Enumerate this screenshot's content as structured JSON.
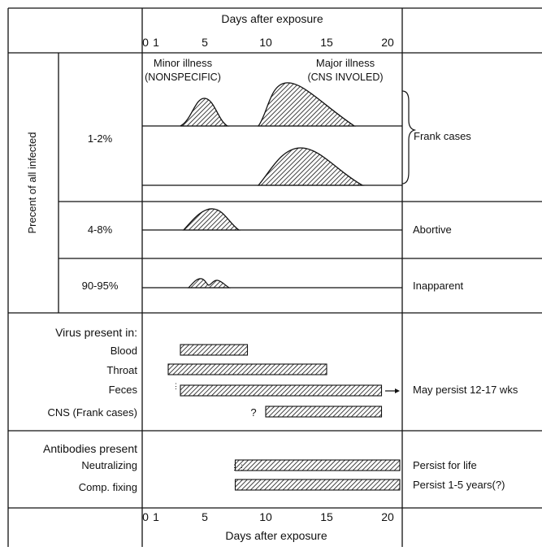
{
  "axis": {
    "title": "Days after exposure",
    "ticks": [
      "0",
      "1",
      "5",
      "10",
      "15",
      "20"
    ],
    "tick_days": [
      0,
      1,
      5,
      10,
      15,
      20
    ]
  },
  "infected": {
    "side_label": "Precent of all infected",
    "illness_labels": {
      "minor_line1": "Minor illness",
      "minor_line2": "(NONSPECIFIC)",
      "major_line1": "Major illness",
      "major_line2": "(CNS INVOLED)"
    },
    "rows": [
      {
        "percent": "1-2%",
        "outcome": "Frank cases"
      },
      {
        "percent": "4-8%",
        "outcome": "Abortive"
      },
      {
        "percent": "90-95%",
        "outcome": "Inapparent"
      }
    ]
  },
  "virus": {
    "heading": "Virus present in:",
    "items": [
      {
        "label": "Blood",
        "start_day": 3,
        "end_day": 8.5,
        "note": ""
      },
      {
        "label": "Throat",
        "start_day": 2,
        "end_day": 15,
        "note": ""
      },
      {
        "label": "Feces",
        "start_day": 3,
        "end_day": 19.5,
        "note": "May persist 12-17 wks"
      },
      {
        "label": "CNS (Frank cases)",
        "start_day": 10,
        "end_day": 19.5,
        "note": ""
      }
    ],
    "question_mark": "?"
  },
  "antibodies": {
    "heading": "Antibodies present",
    "items": [
      {
        "label": "Neutralizing",
        "start_day": 7.5,
        "end_day": 21,
        "note": "Persist for life"
      },
      {
        "label": "Comp. fixing",
        "start_day": 7.5,
        "end_day": 21,
        "note": "Persist 1-5 years(?)"
      }
    ]
  },
  "colors": {
    "ink": "#111111",
    "background": "#ffffff"
  }
}
